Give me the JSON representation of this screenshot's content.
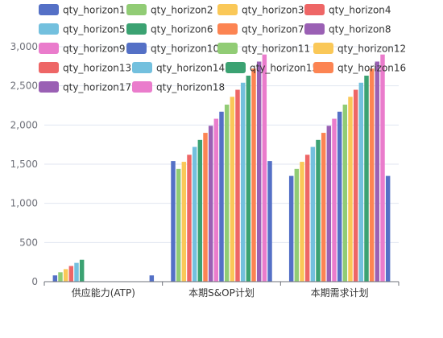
{
  "chart_data": {
    "type": "bar",
    "categories": [
      "供应能力(ATP)",
      "本期S&OP计划",
      "本期需求计划"
    ],
    "ylim": [
      0,
      3000
    ],
    "yticks": [
      0,
      500,
      1000,
      1500,
      2000,
      2500,
      3000
    ],
    "ytick_labels": [
      "0",
      "500",
      "1,000",
      "1,500",
      "2,000",
      "2,500",
      "3,000"
    ],
    "grid": true,
    "legend_position": "top",
    "series": [
      {
        "name": "qty_horizon1",
        "color": "#5470c6",
        "values": [
          80,
          1540,
          1350
        ]
      },
      {
        "name": "qty_horizon2",
        "color": "#91cc75",
        "values": [
          120,
          1440,
          1440
        ]
      },
      {
        "name": "qty_horizon3",
        "color": "#fac858",
        "values": [
          160,
          1530,
          1530
        ]
      },
      {
        "name": "qty_horizon4",
        "color": "#ee6666",
        "values": [
          200,
          1620,
          1620
        ]
      },
      {
        "name": "qty_horizon5",
        "color": "#73c0de",
        "values": [
          240,
          1720,
          1720
        ]
      },
      {
        "name": "qty_horizon6",
        "color": "#3ba272",
        "values": [
          280,
          1810,
          1810
        ]
      },
      {
        "name": "qty_horizon7",
        "color": "#fc8452",
        "values": [
          0,
          1900,
          1900
        ]
      },
      {
        "name": "qty_horizon8",
        "color": "#9a60b4",
        "values": [
          0,
          1990,
          1990
        ]
      },
      {
        "name": "qty_horizon9",
        "color": "#ea7ccc",
        "values": [
          0,
          2080,
          2080
        ]
      },
      {
        "name": "qty_horizon10",
        "color": "#5470c6",
        "values": [
          0,
          2170,
          2170
        ]
      },
      {
        "name": "qty_horizon11",
        "color": "#91cc75",
        "values": [
          0,
          2260,
          2260
        ]
      },
      {
        "name": "qty_horizon12",
        "color": "#fac858",
        "values": [
          0,
          2360,
          2360
        ]
      },
      {
        "name": "qty_horizon13",
        "color": "#ee6666",
        "values": [
          0,
          2450,
          2450
        ]
      },
      {
        "name": "qty_horizon14",
        "color": "#73c0de",
        "values": [
          0,
          2540,
          2540
        ]
      },
      {
        "name": "qty_horizon15",
        "color": "#3ba272",
        "values": [
          0,
          2630,
          2630
        ]
      },
      {
        "name": "qty_horizon16",
        "color": "#fc8452",
        "values": [
          0,
          2720,
          2720
        ]
      },
      {
        "name": "qty_horizon17",
        "color": "#9a60b4",
        "values": [
          0,
          2810,
          2810
        ]
      },
      {
        "name": "qty_horizon18",
        "color": "#ea7ccc",
        "values": [
          0,
          2900,
          2900
        ]
      },
      {
        "name": "",
        "color": "#5470c6",
        "values": [
          80,
          1540,
          1350
        ]
      }
    ]
  }
}
